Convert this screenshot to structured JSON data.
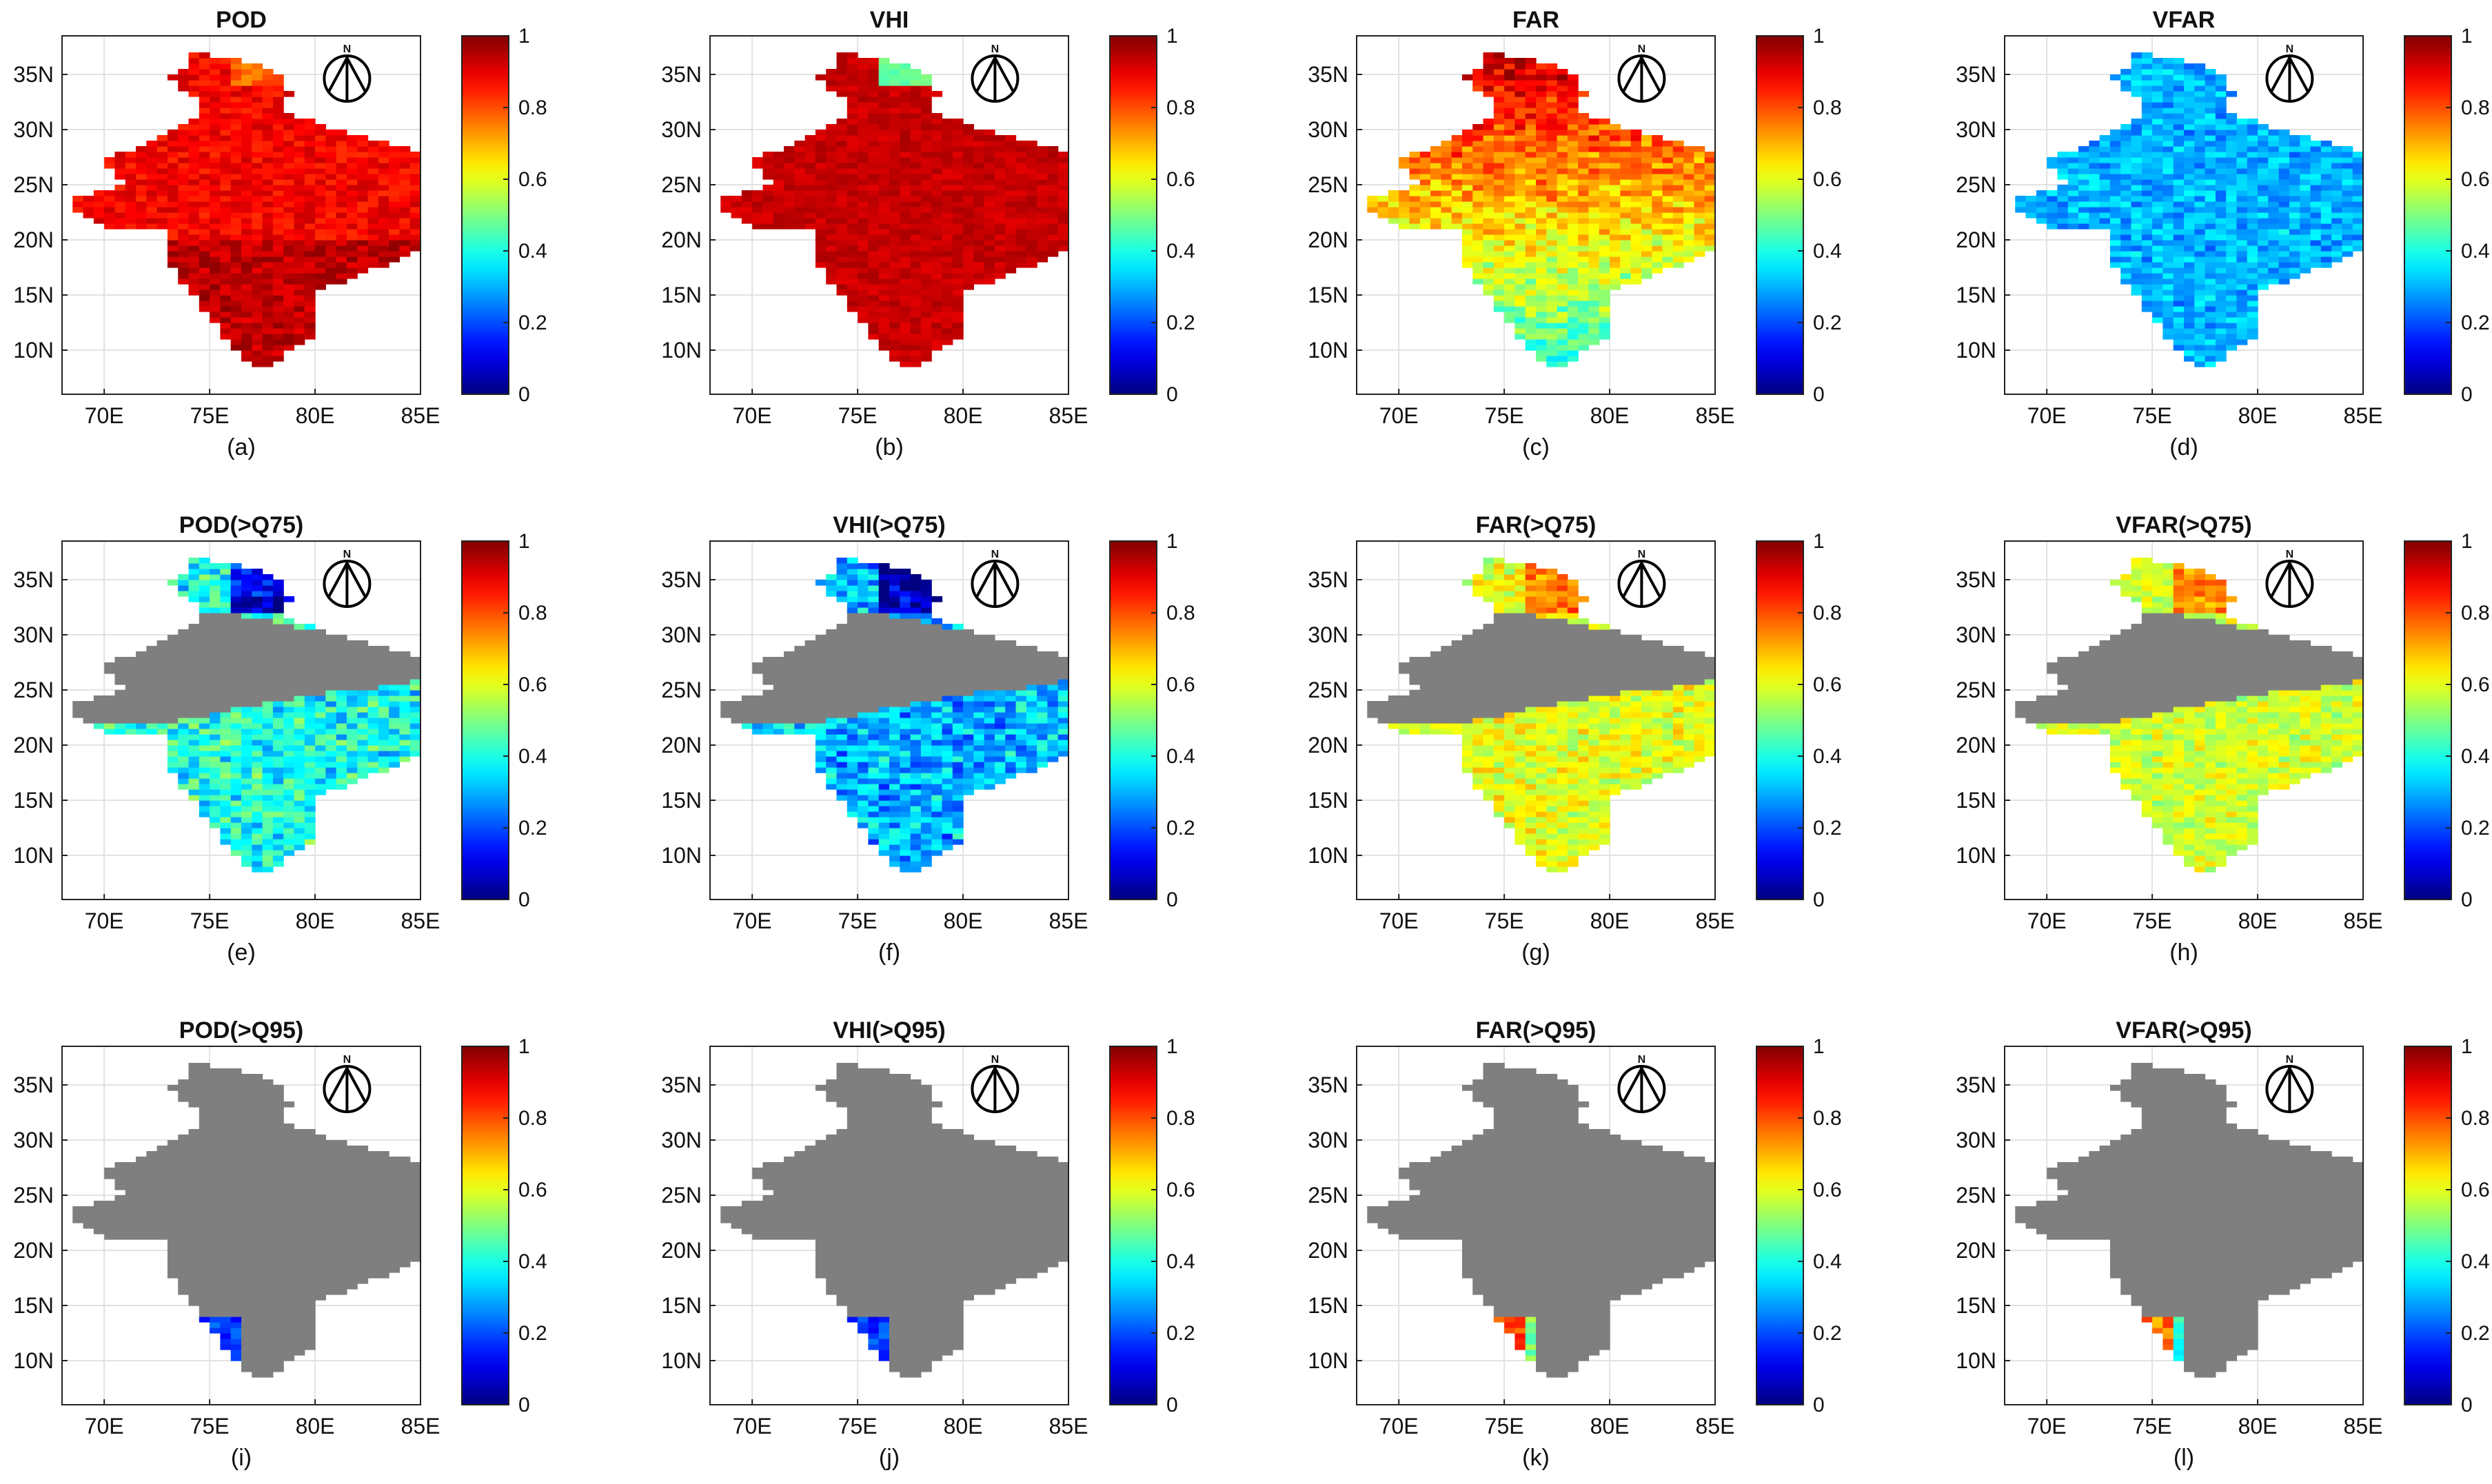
{
  "figure": {
    "panels": [
      {
        "title": "POD",
        "label": "(a)",
        "mask": "full",
        "scheme": "pod_all"
      },
      {
        "title": "VHI",
        "label": "(b)",
        "mask": "full",
        "scheme": "vhi_all"
      },
      {
        "title": "FAR",
        "label": "(c)",
        "mask": "full",
        "scheme": "far_all"
      },
      {
        "title": "VFAR",
        "label": "(d)",
        "mask": "full",
        "scheme": "vfar_all"
      },
      {
        "title": "POD(>Q75)",
        "label": "(e)",
        "mask": "q75",
        "scheme": "pod_q75"
      },
      {
        "title": "VHI(>Q75)",
        "label": "(f)",
        "mask": "q75",
        "scheme": "vhi_q75"
      },
      {
        "title": "FAR(>Q75)",
        "label": "(g)",
        "mask": "q75",
        "scheme": "far_q75"
      },
      {
        "title": "VFAR(>Q75)",
        "label": "(h)",
        "mask": "q75",
        "scheme": "vfar_q75"
      },
      {
        "title": "POD(>Q95)",
        "label": "(i)",
        "mask": "q95",
        "scheme": "pod_q95"
      },
      {
        "title": "VHI(>Q95)",
        "label": "(j)",
        "mask": "q95",
        "scheme": "vhi_q95"
      },
      {
        "title": "FAR(>Q95)",
        "label": "(k)",
        "mask": "q95",
        "scheme": "far_q95"
      },
      {
        "title": "VFAR(>Q95)",
        "label": "(l)",
        "mask": "q95",
        "scheme": "vfar_q95"
      }
    ],
    "x_ticks": [
      "70E",
      "75E",
      "80E",
      "85E"
    ],
    "x_tick_values": [
      70,
      75,
      80,
      85
    ],
    "y_ticks": [
      "35N",
      "30N",
      "25N",
      "20N",
      "15N",
      "10N"
    ],
    "y_tick_values": [
      35,
      30,
      25,
      20,
      15,
      10
    ],
    "lon_range": [
      68,
      85
    ],
    "lat_range": [
      6,
      38.5
    ],
    "colorbar": {
      "ticks": [
        "1",
        "0.8",
        "0.6",
        "0.4",
        "0.2",
        "0"
      ],
      "values": [
        1,
        0.8,
        0.6,
        0.4,
        0.2,
        0
      ],
      "range": [
        0,
        1
      ],
      "colormap": "jet"
    },
    "north_arrow_label": "N",
    "masked_color": "#7f7f7f"
  },
  "chart_data": [
    {
      "type": "heatmap",
      "title": "POD",
      "subplot": "(a)",
      "description_range": [
        0.8,
        1.0
      ],
      "typical_value": 0.9
    },
    {
      "type": "heatmap",
      "title": "VHI",
      "subplot": "(b)",
      "description_range": [
        0.85,
        1.0
      ],
      "typical_value": 0.95
    },
    {
      "type": "heatmap",
      "title": "FAR",
      "subplot": "(c)",
      "description_range": [
        0.4,
        0.9
      ],
      "typical_value": 0.7
    },
    {
      "type": "heatmap",
      "title": "VFAR",
      "subplot": "(d)",
      "description_range": [
        0.2,
        0.5
      ],
      "typical_value": 0.3
    },
    {
      "type": "heatmap",
      "title": "POD(>Q75)",
      "subplot": "(e)",
      "description_range": [
        0.2,
        0.6
      ],
      "typical_value": 0.4
    },
    {
      "type": "heatmap",
      "title": "VHI(>Q75)",
      "subplot": "(f)",
      "description_range": [
        0.1,
        0.5
      ],
      "typical_value": 0.35
    },
    {
      "type": "heatmap",
      "title": "FAR(>Q75)",
      "subplot": "(g)",
      "description_range": [
        0.45,
        0.8
      ],
      "typical_value": 0.6
    },
    {
      "type": "heatmap",
      "title": "VFAR(>Q75)",
      "subplot": "(h)",
      "description_range": [
        0.45,
        0.75
      ],
      "typical_value": 0.6
    },
    {
      "type": "heatmap",
      "title": "POD(>Q95)",
      "subplot": "(i)",
      "description_range": [
        0.1,
        0.3
      ],
      "typical_value": 0.2
    },
    {
      "type": "heatmap",
      "title": "VHI(>Q95)",
      "subplot": "(j)",
      "description_range": [
        0.1,
        0.3
      ],
      "typical_value": 0.2
    },
    {
      "type": "heatmap",
      "title": "FAR(>Q95)",
      "subplot": "(k)",
      "description_range": [
        0.6,
        0.95
      ],
      "typical_value": 0.8
    },
    {
      "type": "heatmap",
      "title": "VFAR(>Q95)",
      "subplot": "(l)",
      "description_range": [
        0.6,
        0.95
      ],
      "typical_value": 0.75
    }
  ]
}
